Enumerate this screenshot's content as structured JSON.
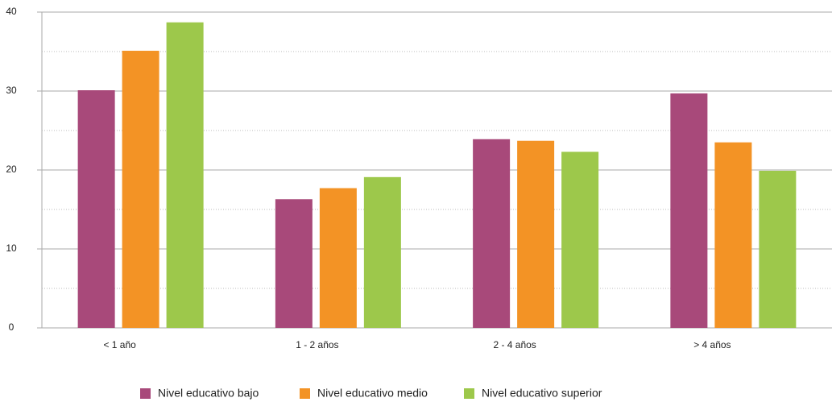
{
  "chart_data": {
    "type": "bar",
    "categories": [
      "< 1 año",
      "1 - 2 años",
      "2 - 4 años",
      "> 4 años"
    ],
    "series": [
      {
        "name": "Nivel educativo bajo",
        "color": "#a8497a",
        "values": [
          30.1,
          16.3,
          23.9,
          29.7
        ]
      },
      {
        "name": "Nivel educativo medio",
        "color": "#f39325",
        "values": [
          35.1,
          17.7,
          23.7,
          23.5
        ]
      },
      {
        "name": "Nivel educativo superior",
        "color": "#9dc84b",
        "values": [
          38.7,
          19.1,
          22.3,
          19.9
        ]
      }
    ],
    "ylim": [
      0,
      40
    ],
    "yticks": [
      0,
      10,
      20,
      30,
      40
    ],
    "yminor": [
      5,
      15,
      25,
      35
    ],
    "grid": true
  }
}
